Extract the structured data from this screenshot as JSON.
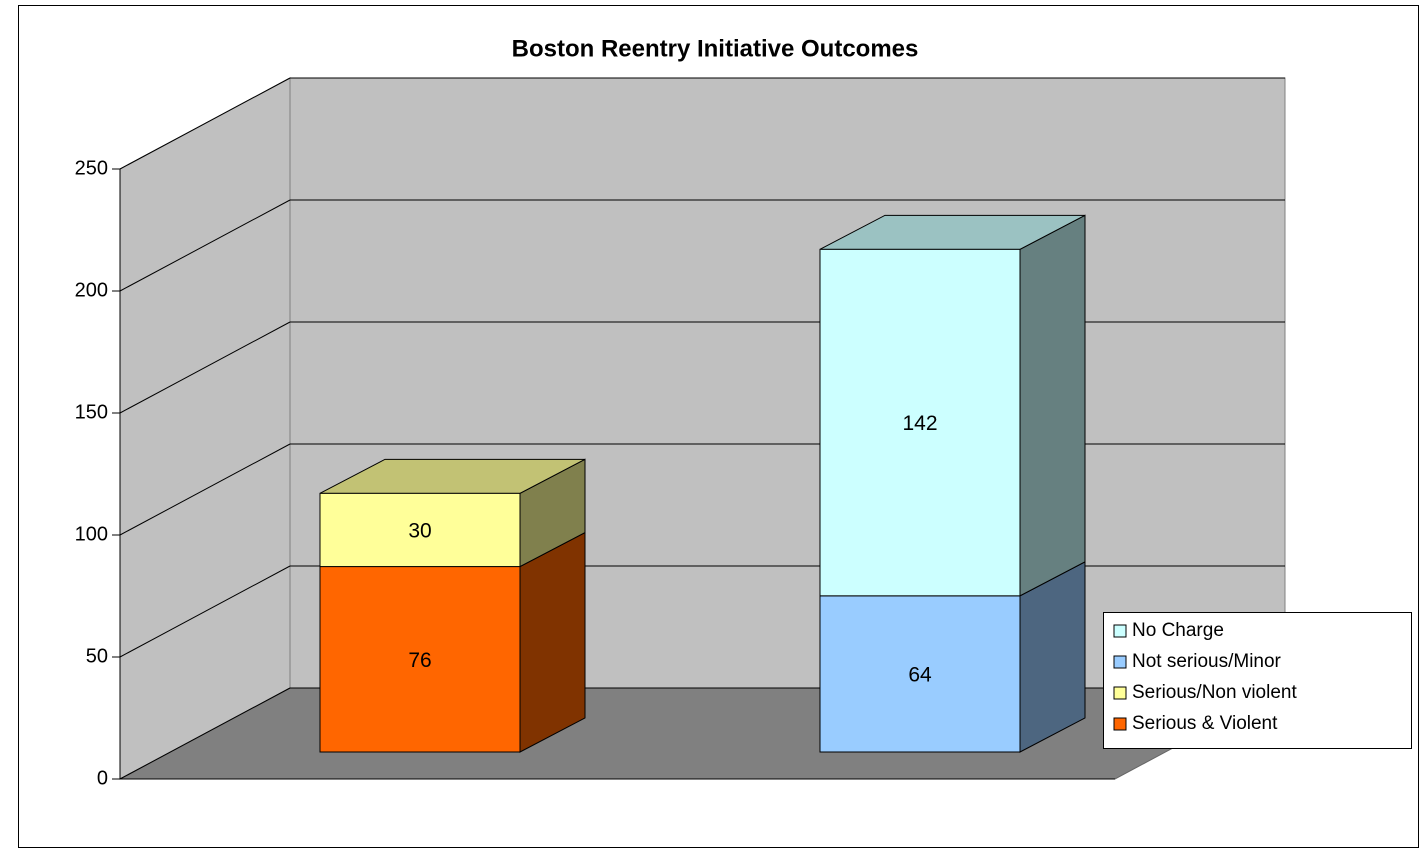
{
  "chart_data": {
    "type": "bar3d_stacked",
    "title": "Boston Reentry Initiative Outcomes",
    "categories": [
      null,
      null
    ],
    "series": [
      {
        "name": "Serious & Violent",
        "color": "#ff6600",
        "values": [
          76,
          null
        ]
      },
      {
        "name": "Serious/Non violent",
        "color": "#ffff99",
        "values": [
          30,
          null
        ]
      },
      {
        "name": "Not serious/Minor",
        "color": "#99ccff",
        "values": [
          null,
          64
        ]
      },
      {
        "name": "No Charge",
        "color": "#ccffff",
        "values": [
          null,
          142
        ]
      }
    ],
    "ylim": [
      0,
      250
    ],
    "yticks": [
      0,
      50,
      100,
      150,
      200,
      250
    ],
    "grid": true,
    "legend": "right"
  }
}
